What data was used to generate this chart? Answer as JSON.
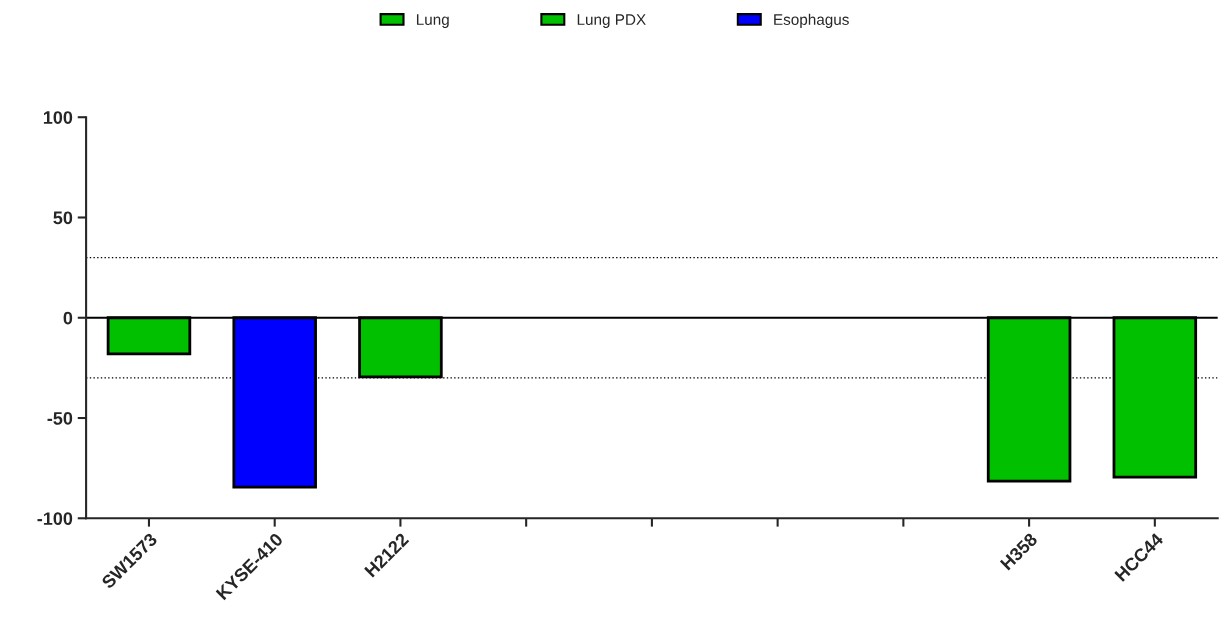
{
  "chart_data": {
    "type": "bar",
    "categories": [
      "SW1573",
      "KYSE-410",
      "H2122",
      null,
      null,
      null,
      null,
      "H358",
      "HCC44"
    ],
    "series": [
      {
        "name": "Lung",
        "color": "#00c000",
        "values": [
          -18,
          null,
          -29.5,
          null,
          null,
          null,
          null,
          -81.5,
          -79.5
        ]
      },
      {
        "name": "Lung PDX",
        "color": "#00c000",
        "values": [
          null,
          null,
          null,
          null,
          null,
          null,
          null,
          null,
          null
        ]
      },
      {
        "name": "Esophagus",
        "color": "#0000ff",
        "values": [
          null,
          -84.5,
          null,
          null,
          null,
          null,
          null,
          null,
          null
        ]
      }
    ],
    "ylim": [
      -100,
      100
    ],
    "yticks": [
      -100,
      -50,
      0,
      50,
      100
    ],
    "ref_lines": [
      {
        "axis": "y",
        "value": 30,
        "line_style": "dotted"
      },
      {
        "axis": "y",
        "value": -30,
        "line_style": "dotted"
      },
      {
        "axis": "y",
        "value": 0,
        "line_style": "solid"
      }
    ],
    "grid": false,
    "legend": "top"
  }
}
